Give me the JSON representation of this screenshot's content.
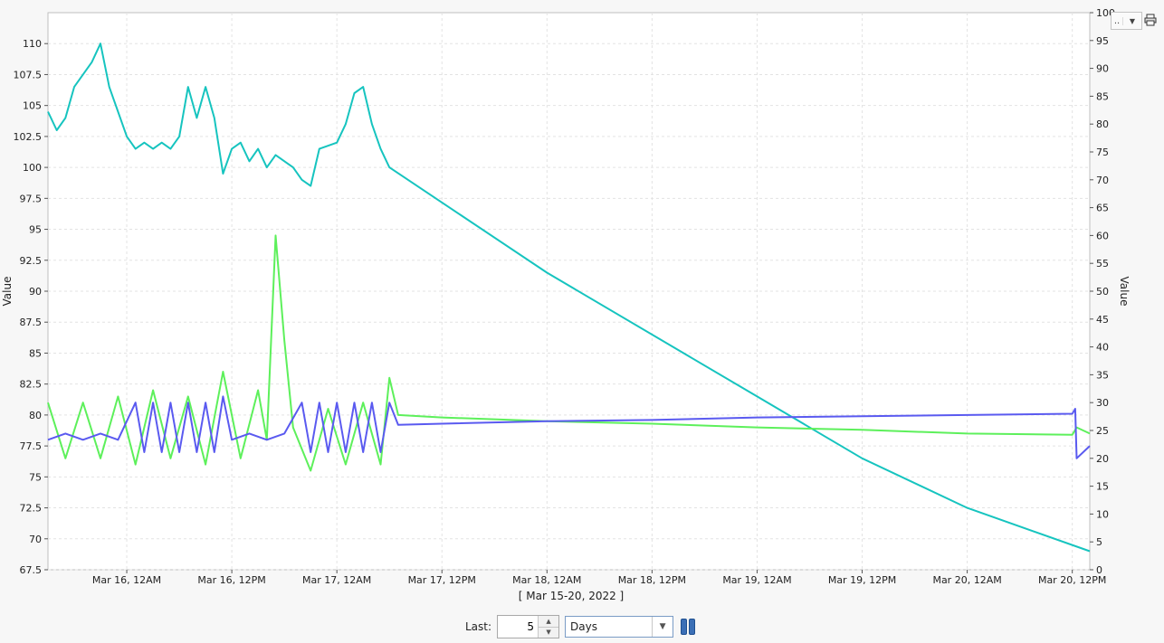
{
  "chart_data": {
    "type": "line",
    "xlabel": "[ Mar 15-20, 2022 ]",
    "x_range": [
      "2022-03-15 15:00",
      "2022-03-20 14:00"
    ],
    "x_ticks": [
      {
        "t": "2022-03-16 00:00",
        "label": "Mar 16, 12AM"
      },
      {
        "t": "2022-03-16 12:00",
        "label": "Mar 16, 12PM"
      },
      {
        "t": "2022-03-17 00:00",
        "label": "Mar 17, 12AM"
      },
      {
        "t": "2022-03-17 12:00",
        "label": "Mar 17, 12PM"
      },
      {
        "t": "2022-03-18 00:00",
        "label": "Mar 18, 12AM"
      },
      {
        "t": "2022-03-18 12:00",
        "label": "Mar 18, 12PM"
      },
      {
        "t": "2022-03-19 00:00",
        "label": "Mar 19, 12AM"
      },
      {
        "t": "2022-03-19 12:00",
        "label": "Mar 19, 12PM"
      },
      {
        "t": "2022-03-20 00:00",
        "label": "Mar 20, 12AM"
      },
      {
        "t": "2022-03-20 12:00",
        "label": "Mar 20, 12PM"
      }
    ],
    "y_left": {
      "label": "Value",
      "range": [
        67.5,
        112.5
      ],
      "ticks": [
        "67.5",
        "70",
        "72.5",
        "75",
        "77.5",
        "80",
        "82.5",
        "85",
        "87.5",
        "90",
        "92.5",
        "95",
        "97.5",
        "100",
        "102.5",
        "105",
        "107.5",
        "110"
      ]
    },
    "y_right": {
      "label": "Value",
      "range": [
        0,
        100
      ],
      "ticks": [
        "0",
        "5",
        "10",
        "15",
        "20",
        "25",
        "30",
        "35",
        "40",
        "45",
        "50",
        "55",
        "60",
        "65",
        "70",
        "75",
        "80",
        "85",
        "90",
        "95",
        "100"
      ]
    },
    "grid": true,
    "series": [
      {
        "color": "#16c4bf",
        "axis": "left",
        "points": [
          [
            "2022-03-15 15:00",
            104.5
          ],
          [
            "2022-03-15 16:00",
            103
          ],
          [
            "2022-03-15 17:00",
            104
          ],
          [
            "2022-03-15 18:00",
            106.5
          ],
          [
            "2022-03-15 19:00",
            107.5
          ],
          [
            "2022-03-15 20:00",
            108.5
          ],
          [
            "2022-03-15 21:00",
            110
          ],
          [
            "2022-03-15 22:00",
            106.5
          ],
          [
            "2022-03-15 23:00",
            104.5
          ],
          [
            "2022-03-16 00:00",
            102.5
          ],
          [
            "2022-03-16 01:00",
            101.5
          ],
          [
            "2022-03-16 02:00",
            102
          ],
          [
            "2022-03-16 03:00",
            101.5
          ],
          [
            "2022-03-16 04:00",
            102
          ],
          [
            "2022-03-16 05:00",
            101.5
          ],
          [
            "2022-03-16 06:00",
            102.5
          ],
          [
            "2022-03-16 07:00",
            106.5
          ],
          [
            "2022-03-16 08:00",
            104
          ],
          [
            "2022-03-16 09:00",
            106.5
          ],
          [
            "2022-03-16 10:00",
            104
          ],
          [
            "2022-03-16 11:00",
            99.5
          ],
          [
            "2022-03-16 12:00",
            101.5
          ],
          [
            "2022-03-16 13:00",
            102
          ],
          [
            "2022-03-16 14:00",
            100.5
          ],
          [
            "2022-03-16 15:00",
            101.5
          ],
          [
            "2022-03-16 16:00",
            100
          ],
          [
            "2022-03-16 17:00",
            101
          ],
          [
            "2022-03-16 18:00",
            100.5
          ],
          [
            "2022-03-16 19:00",
            100
          ],
          [
            "2022-03-16 20:00",
            99
          ],
          [
            "2022-03-16 21:00",
            98.5
          ],
          [
            "2022-03-16 22:00",
            101.5
          ],
          [
            "2022-03-17 00:00",
            102
          ],
          [
            "2022-03-17 01:00",
            103.5
          ],
          [
            "2022-03-17 02:00",
            106
          ],
          [
            "2022-03-17 03:00",
            106.5
          ],
          [
            "2022-03-17 04:00",
            103.5
          ],
          [
            "2022-03-17 05:00",
            101.5
          ],
          [
            "2022-03-17 06:00",
            100
          ],
          [
            "2022-03-18 00:00",
            91.5
          ],
          [
            "2022-03-19 00:00",
            81.5
          ],
          [
            "2022-03-19 12:00",
            76.5
          ],
          [
            "2022-03-20 00:00",
            72.5
          ],
          [
            "2022-03-20 14:00",
            69
          ]
        ]
      },
      {
        "color": "#5df05b",
        "axis": "left",
        "points": [
          [
            "2022-03-15 15:00",
            81
          ],
          [
            "2022-03-15 17:00",
            76.5
          ],
          [
            "2022-03-15 19:00",
            81
          ],
          [
            "2022-03-15 21:00",
            76.5
          ],
          [
            "2022-03-15 23:00",
            81.5
          ],
          [
            "2022-03-16 01:00",
            76
          ],
          [
            "2022-03-16 03:00",
            82
          ],
          [
            "2022-03-16 05:00",
            76.5
          ],
          [
            "2022-03-16 07:00",
            81.5
          ],
          [
            "2022-03-16 09:00",
            76
          ],
          [
            "2022-03-16 11:00",
            83.5
          ],
          [
            "2022-03-16 13:00",
            76.5
          ],
          [
            "2022-03-16 15:00",
            82
          ],
          [
            "2022-03-16 16:00",
            78
          ],
          [
            "2022-03-16 17:00",
            94.5
          ],
          [
            "2022-03-16 18:00",
            86
          ],
          [
            "2022-03-16 19:00",
            79
          ],
          [
            "2022-03-16 21:00",
            75.5
          ],
          [
            "2022-03-16 23:00",
            80.5
          ],
          [
            "2022-03-17 01:00",
            76
          ],
          [
            "2022-03-17 03:00",
            81
          ],
          [
            "2022-03-17 05:00",
            76
          ],
          [
            "2022-03-17 06:00",
            83
          ],
          [
            "2022-03-17 07:00",
            80
          ],
          [
            "2022-03-17 12:00",
            79.8
          ],
          [
            "2022-03-18 00:00",
            79.5
          ],
          [
            "2022-03-18 12:00",
            79.3
          ],
          [
            "2022-03-19 00:00",
            79
          ],
          [
            "2022-03-19 12:00",
            78.8
          ],
          [
            "2022-03-20 00:00",
            78.5
          ],
          [
            "2022-03-20 12:00",
            78.4
          ],
          [
            "2022-03-20 12:30",
            79
          ],
          [
            "2022-03-20 14:00",
            78.5
          ]
        ]
      },
      {
        "color": "#5a5af0",
        "axis": "left",
        "points": [
          [
            "2022-03-15 15:00",
            78
          ],
          [
            "2022-03-15 17:00",
            78.5
          ],
          [
            "2022-03-15 19:00",
            78
          ],
          [
            "2022-03-15 21:00",
            78.5
          ],
          [
            "2022-03-15 23:00",
            78
          ],
          [
            "2022-03-16 01:00",
            81
          ],
          [
            "2022-03-16 02:00",
            77
          ],
          [
            "2022-03-16 03:00",
            81
          ],
          [
            "2022-03-16 04:00",
            77
          ],
          [
            "2022-03-16 05:00",
            81
          ],
          [
            "2022-03-16 06:00",
            77
          ],
          [
            "2022-03-16 07:00",
            81
          ],
          [
            "2022-03-16 08:00",
            77
          ],
          [
            "2022-03-16 09:00",
            81
          ],
          [
            "2022-03-16 10:00",
            77
          ],
          [
            "2022-03-16 11:00",
            81.5
          ],
          [
            "2022-03-16 12:00",
            78
          ],
          [
            "2022-03-16 14:00",
            78.5
          ],
          [
            "2022-03-16 16:00",
            78
          ],
          [
            "2022-03-16 18:00",
            78.5
          ],
          [
            "2022-03-16 20:00",
            81
          ],
          [
            "2022-03-16 21:00",
            77
          ],
          [
            "2022-03-16 22:00",
            81
          ],
          [
            "2022-03-16 23:00",
            77
          ],
          [
            "2022-03-17 00:00",
            81
          ],
          [
            "2022-03-17 01:00",
            77
          ],
          [
            "2022-03-17 02:00",
            81
          ],
          [
            "2022-03-17 03:00",
            77
          ],
          [
            "2022-03-17 04:00",
            81
          ],
          [
            "2022-03-17 05:00",
            77
          ],
          [
            "2022-03-17 06:00",
            81
          ],
          [
            "2022-03-17 07:00",
            79.2
          ],
          [
            "2022-03-17 12:00",
            79.3
          ],
          [
            "2022-03-18 00:00",
            79.5
          ],
          [
            "2022-03-18 12:00",
            79.6
          ],
          [
            "2022-03-19 00:00",
            79.8
          ],
          [
            "2022-03-19 12:00",
            79.9
          ],
          [
            "2022-03-20 00:00",
            80
          ],
          [
            "2022-03-20 12:00",
            80.1
          ],
          [
            "2022-03-20 12:20",
            80.5
          ],
          [
            "2022-03-20 12:30",
            76.5
          ],
          [
            "2022-03-20 14:00",
            77.5
          ]
        ]
      }
    ]
  },
  "controls": {
    "last_label": "Last:",
    "last_value": "5",
    "unit_value": "Days",
    "stepper_up": "▲",
    "stepper_down": "▼",
    "select_arrow": "▼"
  },
  "top_dropdown": {
    "dots": "..",
    "arrow": "▼"
  }
}
